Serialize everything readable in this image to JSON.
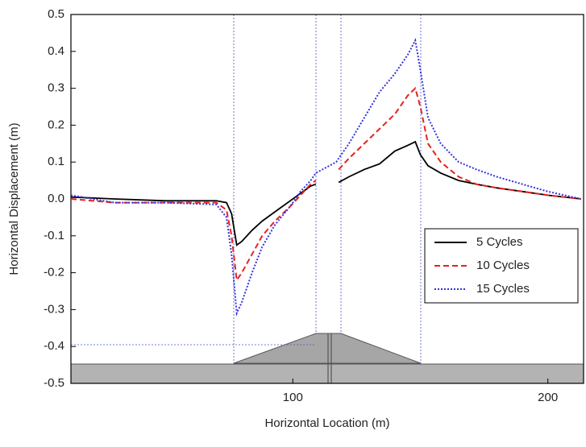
{
  "chart_data": {
    "type": "line",
    "x_label": "Horizontal Location (m)",
    "y_label": "Horizontal Displacement (m)",
    "x": [
      13,
      30,
      50,
      70,
      74,
      76,
      78,
      80,
      84,
      88,
      93,
      99,
      103,
      107,
      109,
      117,
      118,
      122,
      128,
      134,
      140,
      145,
      148,
      150,
      153,
      158,
      165,
      172,
      180,
      190,
      200,
      213
    ],
    "series": [
      {
        "name": "5 Cycles",
        "color": "#000000",
        "dash": "solid",
        "values": [
          0.005,
          0,
          -0.005,
          -0.005,
          -0.01,
          -0.04,
          -0.125,
          -0.115,
          -0.085,
          -0.06,
          -0.035,
          -0.005,
          0.015,
          0.035,
          0.04,
          null,
          0.045,
          0.06,
          0.08,
          0.095,
          0.13,
          0.145,
          0.155,
          0.12,
          0.09,
          0.07,
          0.05,
          0.04,
          0.03,
          0.02,
          0.01,
          0
        ]
      },
      {
        "name": "10 Cycles",
        "color": "#e8201f",
        "dash": "dashed",
        "values": [
          0,
          -0.01,
          -0.01,
          -0.01,
          -0.03,
          -0.1,
          -0.22,
          -0.2,
          -0.15,
          -0.1,
          -0.06,
          -0.02,
          0.01,
          0.04,
          0.05,
          null,
          0.08,
          0.11,
          0.15,
          0.19,
          0.23,
          0.28,
          0.3,
          0.25,
          0.15,
          0.1,
          0.06,
          0.04,
          0.03,
          0.02,
          0.01,
          0
        ]
      },
      {
        "name": "15 Cycles",
        "color": "#3333dd",
        "dash": "dotted",
        "values": [
          0.01,
          -0.01,
          -0.01,
          -0.015,
          -0.05,
          -0.15,
          -0.31,
          -0.28,
          -0.2,
          -0.13,
          -0.07,
          -0.02,
          0.02,
          0.05,
          0.07,
          0.1,
          0.11,
          0.15,
          0.22,
          0.29,
          0.34,
          0.39,
          0.43,
          0.35,
          0.22,
          0.15,
          0.1,
          0.08,
          0.06,
          0.04,
          0.02,
          0
        ]
      }
    ],
    "xlim": [
      13,
      214
    ],
    "xticks": [
      100,
      200
    ],
    "ylim": [
      -0.5,
      0.5
    ],
    "yticks": [
      -0.5,
      -0.4,
      -0.3,
      -0.2,
      -0.1,
      {
        "value": 0,
        "label": "0.0"
      },
      0.1,
      0.2,
      0.3,
      0.4,
      0.5
    ],
    "legend": "lower-right"
  }
}
